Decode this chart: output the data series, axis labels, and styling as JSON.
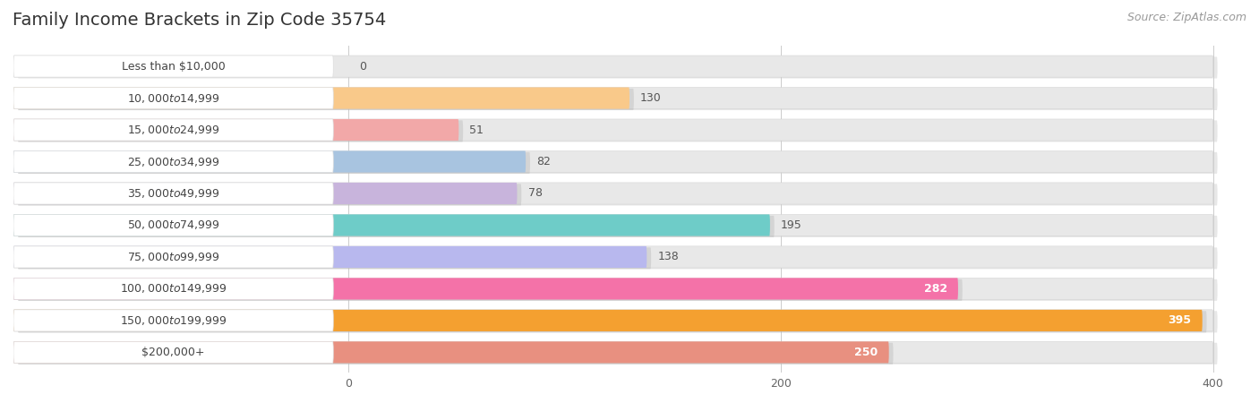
{
  "title": "Family Income Brackets in Zip Code 35754",
  "source": "Source: ZipAtlas.com",
  "categories": [
    "Less than $10,000",
    "$10,000 to $14,999",
    "$15,000 to $24,999",
    "$25,000 to $34,999",
    "$35,000 to $49,999",
    "$50,000 to $74,999",
    "$75,000 to $99,999",
    "$100,000 to $149,999",
    "$150,000 to $199,999",
    "$200,000+"
  ],
  "values": [
    0,
    130,
    51,
    82,
    78,
    195,
    138,
    282,
    395,
    250
  ],
  "bar_colors": [
    "#F5A0BE",
    "#F9C98A",
    "#F2A8A8",
    "#A8C4E0",
    "#C8B4DC",
    "#6ECCC8",
    "#B8B8EE",
    "#F472A8",
    "#F4A030",
    "#E89080"
  ],
  "value_inside": [
    false,
    false,
    false,
    false,
    false,
    false,
    false,
    true,
    true,
    true
  ],
  "xlim_data": [
    0,
    400
  ],
  "xticks": [
    0,
    200,
    400
  ],
  "background_color": "#ffffff",
  "bar_bg_color": "#e8e8e8",
  "title_fontsize": 14,
  "source_fontsize": 9,
  "label_fontsize": 9,
  "value_fontsize": 9,
  "bar_height": 0.68
}
